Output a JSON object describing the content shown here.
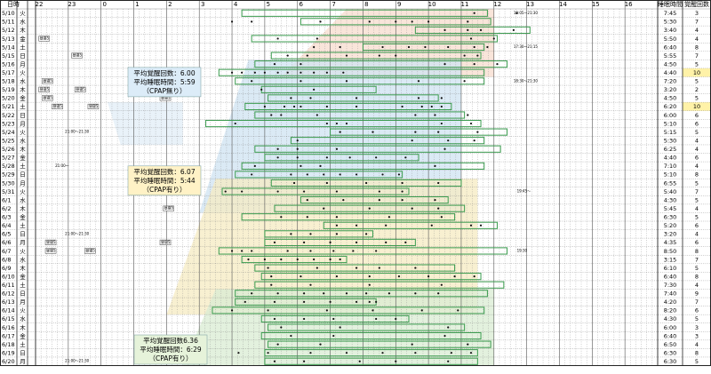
{
  "chart_data": {
    "type": "table",
    "header": {
      "date": "日時",
      "sleep_time": "睡眠時間",
      "wake_count": "覚醒回数",
      "hours": [
        "22",
        "23",
        "0",
        "1",
        "2",
        "3",
        "4",
        "5",
        "6",
        "7",
        "8",
        "9",
        "10",
        "11",
        "12",
        "13",
        "14",
        "15",
        "16"
      ]
    },
    "rows": [
      {
        "date": "5/10",
        "day": "火",
        "sleep": "7:45",
        "wakes": "3"
      },
      {
        "date": "5/11",
        "day": "水",
        "sleep": "5:30",
        "wakes": "7"
      },
      {
        "date": "5/12",
        "day": "木",
        "sleep": "3:40",
        "wakes": "4"
      },
      {
        "date": "5/13",
        "day": "金",
        "sleep": "5:50",
        "wakes": "4"
      },
      {
        "date": "5/14",
        "day": "土",
        "sleep": "6:40",
        "wakes": "8"
      },
      {
        "date": "5/15",
        "day": "日",
        "sleep": "5:55",
        "wakes": "7"
      },
      {
        "date": "5/16",
        "day": "月",
        "sleep": "4:50",
        "wakes": "5"
      },
      {
        "date": "5/17",
        "day": "火",
        "sleep": "4:40",
        "wakes": "10"
      },
      {
        "date": "5/18",
        "day": "水",
        "sleep": "7:20",
        "wakes": "5"
      },
      {
        "date": "5/19",
        "day": "木",
        "sleep": "3:20",
        "wakes": "2"
      },
      {
        "date": "5/20",
        "day": "金",
        "sleep": "4:50",
        "wakes": "5"
      },
      {
        "date": "5/21",
        "day": "土",
        "sleep": "6:20",
        "wakes": "10"
      },
      {
        "date": "5/22",
        "day": "日",
        "sleep": "6:00",
        "wakes": "6"
      },
      {
        "date": "5/23",
        "day": "月",
        "sleep": "5:10",
        "wakes": "6"
      },
      {
        "date": "5/24",
        "day": "火",
        "sleep": "5:15",
        "wakes": "5"
      },
      {
        "date": "5/25",
        "day": "水",
        "sleep": "5:30",
        "wakes": "4"
      },
      {
        "date": "5/26",
        "day": "木",
        "sleep": "6:25",
        "wakes": "4"
      },
      {
        "date": "5/27",
        "day": "金",
        "sleep": "4:40",
        "wakes": "6"
      },
      {
        "date": "5/28",
        "day": "土",
        "sleep": "7:10",
        "wakes": "4"
      },
      {
        "date": "5/29",
        "day": "日",
        "sleep": "5:10",
        "wakes": "8"
      },
      {
        "date": "5/30",
        "day": "月",
        "sleep": "6:55",
        "wakes": "5"
      },
      {
        "date": "5/31",
        "day": "火",
        "sleep": "5:40",
        "wakes": "7"
      },
      {
        "date": "6/1",
        "day": "水",
        "sleep": "4:30",
        "wakes": "5"
      },
      {
        "date": "6/2",
        "day": "木",
        "sleep": "5:45",
        "wakes": "4"
      },
      {
        "date": "6/3",
        "day": "金",
        "sleep": "6:30",
        "wakes": "5"
      },
      {
        "date": "6/4",
        "day": "土",
        "sleep": "5:20",
        "wakes": "6"
      },
      {
        "date": "6/5",
        "day": "日",
        "sleep": "3:20",
        "wakes": "4"
      },
      {
        "date": "6/6",
        "day": "月",
        "sleep": "4:35",
        "wakes": "6"
      },
      {
        "date": "6/7",
        "day": "火",
        "sleep": "8:50",
        "wakes": "8"
      },
      {
        "date": "6/8",
        "day": "水",
        "sleep": "3:15",
        "wakes": "7"
      },
      {
        "date": "6/9",
        "day": "木",
        "sleep": "6:10",
        "wakes": "5"
      },
      {
        "date": "6/10",
        "day": "金",
        "sleep": "6:40",
        "wakes": "8"
      },
      {
        "date": "6/11",
        "day": "土",
        "sleep": "7:30",
        "wakes": "4"
      },
      {
        "date": "6/12",
        "day": "日",
        "sleep": "7:40",
        "wakes": "9"
      },
      {
        "date": "6/13",
        "day": "月",
        "sleep": "4:20",
        "wakes": "7"
      },
      {
        "date": "6/14",
        "day": "火",
        "sleep": "8:20",
        "wakes": "6"
      },
      {
        "date": "6/15",
        "day": "水",
        "sleep": "4:30",
        "wakes": "5"
      },
      {
        "date": "6/16",
        "day": "木",
        "sleep": "6:00",
        "wakes": "3"
      },
      {
        "date": "6/17",
        "day": "金",
        "sleep": "6:40",
        "wakes": "3"
      },
      {
        "date": "6/18",
        "day": "土",
        "sleep": "6:50",
        "wakes": "4"
      },
      {
        "date": "6/19",
        "day": "日",
        "sleep": "6:30",
        "wakes": "8"
      },
      {
        "date": "6/20",
        "day": "月",
        "sleep": "6:30",
        "wakes": "5"
      }
    ],
    "sleep_bars": [
      [
        6.3,
        13.8
      ],
      [
        8.1,
        13.9
      ],
      [
        11.6,
        15.1
      ],
      [
        6.6,
        14.1
      ],
      [
        10.0,
        13.7
      ],
      [
        7.2,
        13.6
      ],
      [
        6.7,
        14.4
      ],
      [
        5.6,
        13.7
      ],
      [
        6.1,
        13.7
      ],
      [
        6.9,
        10.4
      ],
      [
        7.1,
        12.3
      ],
      [
        6.4,
        12.7
      ],
      [
        6.7,
        13.1
      ],
      [
        5.2,
        13.6
      ],
      [
        9.0,
        14.4
      ],
      [
        7.8,
        13.7
      ],
      [
        6.7,
        14.2
      ],
      [
        7.0,
        11.7
      ],
      [
        6.3,
        13.7
      ],
      [
        6.1,
        11.2
      ],
      [
        7.2,
        13.0
      ],
      [
        5.7,
        11.4
      ],
      [
        8.1,
        12.6
      ],
      [
        7.3,
        13.1
      ],
      [
        6.3,
        12.8
      ],
      [
        8.8,
        14.1
      ],
      [
        7.0,
        10.3
      ],
      [
        7.0,
        11.6
      ],
      [
        5.6,
        14.4
      ],
      [
        6.3,
        9.5
      ],
      [
        6.7,
        12.8
      ],
      [
        6.9,
        13.6
      ],
      [
        6.7,
        14.3
      ],
      [
        6.1,
        13.8
      ],
      [
        6.1,
        10.4
      ],
      [
        5.4,
        13.7
      ],
      [
        6.9,
        11.4
      ],
      [
        7.1,
        13.1
      ],
      [
        6.9,
        13.6
      ],
      [
        7.1,
        13.9
      ],
      [
        7.0,
        13.5
      ],
      [
        7.0,
        13.5
      ]
    ],
    "dots": [
      [
        13.4,
        14.7
      ],
      [
        6.0,
        6.6,
        8.7,
        10.2,
        11.0,
        11.5,
        12.0,
        13.2
      ],
      [
        12.5,
        13.2,
        13.6,
        14.6
      ],
      [
        7.4,
        8.6,
        13.3,
        14.0
      ],
      [
        8.5,
        9.3,
        10.6,
        11.4,
        11.9,
        12.6,
        13.4,
        13.8
      ],
      [
        7.7,
        8.3,
        9.5,
        10.5,
        11.0,
        13.1,
        13.5
      ],
      [
        7.3,
        8.1,
        12.5,
        13.4,
        14.1
      ],
      [
        6.0,
        6.3,
        6.7,
        7.0,
        7.4,
        7.7,
        8.1,
        8.5,
        8.9,
        9.4
      ],
      [
        6.6,
        8.1,
        9.5,
        11.7,
        13.1
      ],
      [
        6.9,
        8.5
      ],
      [
        7.8,
        8.4,
        9.8,
        11.7,
        12.4
      ],
      [
        7.0,
        7.6,
        7.9,
        8.1,
        8.9,
        9.8,
        11.2,
        11.8,
        12.1,
        12.4
      ],
      [
        7.2,
        7.5,
        8.6,
        11.6,
        12.2,
        13.2
      ],
      [
        6.1,
        8.9,
        9.2,
        9.5,
        12.4,
        13.3
      ],
      [
        9.3,
        10.3,
        11.6,
        12.3,
        13.5
      ],
      [
        8.0,
        11.5,
        12.6,
        13.4
      ],
      [
        7.4,
        8.0,
        9.2,
        12.5
      ],
      [
        7.4,
        8.0,
        8.9,
        9.6,
        10.4,
        11.3
      ],
      [
        6.7,
        8.1,
        8.7,
        12.2
      ],
      [
        6.6,
        7.8,
        8.3,
        8.8,
        9.3,
        9.8,
        10.6,
        11.1
      ],
      [
        7.9,
        8.9,
        10.1,
        11.2,
        12.3
      ],
      [
        5.8,
        6.3,
        7.4,
        8.2,
        9.2,
        10.5,
        11.2
      ],
      [
        8.3,
        9.4,
        10.5,
        11.2,
        12.2
      ],
      [
        8.8,
        10.2,
        11.5,
        12.3
      ],
      [
        7.5,
        8.3,
        9.2,
        10.8,
        12.4
      ],
      [
        9.2,
        9.8,
        10.7,
        12.1,
        13.3,
        13.6
      ],
      [
        7.8,
        8.4,
        9.2,
        10.1
      ],
      [
        7.3,
        8.2,
        9.0,
        9.8,
        10.7,
        11.3
      ],
      [
        6.0,
        6.3,
        6.6,
        7.7,
        8.4,
        9.1,
        9.7,
        10.4
      ],
      [
        6.5,
        7.0,
        7.5,
        8.0,
        8.5,
        9.0,
        9.3
      ],
      [
        7.1,
        8.6,
        9.8,
        10.5,
        11.6
      ],
      [
        7.2,
        8.1,
        9.2,
        10.2,
        11.1,
        12.0,
        12.8,
        13.4
      ],
      [
        7.2,
        8.4,
        10.2,
        12.4
      ],
      [
        6.6,
        7.4,
        8.2,
        8.8,
        9.5,
        10.1,
        10.8,
        11.6,
        12.3
      ],
      [
        6.4,
        7.3,
        8.2,
        9.0,
        9.8,
        10.2,
        10.4
      ],
      [
        6.0,
        7.1,
        8.9,
        10.3,
        11.8,
        12.9
      ],
      [
        7.3,
        8.2,
        9.1,
        10.4,
        11.0
      ],
      [
        7.5,
        9.3,
        12.6
      ],
      [
        7.8,
        9.1,
        12.5
      ],
      [
        7.4,
        8.7,
        11.5,
        13.2
      ],
      [
        6.2,
        7.1,
        8.4,
        9.5,
        10.6,
        11.6,
        12.7,
        13.3
      ],
      [
        7.3,
        8.2,
        9.9,
        11.0,
        12.6
      ]
    ],
    "day_marks": [
      [],
      [],
      [],
      [
        0.1
      ],
      [],
      [
        1.1
      ],
      [],
      [],
      [
        0.2,
        3.9
      ],
      [
        0.1,
        1.2
      ],
      [
        0.2,
        3.8
      ],
      [
        0.5,
        1.6
      ],
      [],
      [],
      [],
      [],
      [],
      [],
      [],
      [],
      [],
      [],
      [],
      [
        3.9
      ],
      [],
      [],
      [],
      [
        0.3,
        3.8
      ],
      [
        0.3,
        1.5
      ],
      [],
      [],
      [],
      [],
      [],
      [],
      [],
      [],
      [],
      [],
      [],
      [],
      []
    ],
    "day_mark_text": "昼寝5",
    "bedtimes": [
      {
        "row": 0,
        "text": "18:05～21:30"
      },
      {
        "row": 4,
        "text": "17:30～21:15"
      },
      {
        "row": 8,
        "text": "18:30～21:30"
      },
      {
        "row": 14,
        "text": "21:00～21:30"
      },
      {
        "row": 18,
        "text": "21:00～"
      },
      {
        "row": 21,
        "text": "19:45～"
      },
      {
        "row": 26,
        "text": "21:00～21:30"
      },
      {
        "row": 28,
        "text": "19:30"
      },
      {
        "row": 41,
        "text": "21:00～21:30"
      }
    ],
    "summaries": [
      {
        "line1": "平均覚醒回数：6.00",
        "line2": "平均睡眠時間：5:59",
        "line3": "（CPAP無り）"
      },
      {
        "line1": "平均覚醒回数：6.07",
        "line2": "平均睡眠時間：5:44",
        "line3": "（CPAP有り）"
      },
      {
        "line1": "平均覚醒回数6.36",
        "line2": "平均睡眠時間：6:29",
        "line3": "（CPAP有り）"
      }
    ],
    "highlight_rows": [
      7,
      11
    ],
    "colors": {
      "period1": "#f7dccd",
      "period2": "#cfe3f2",
      "period3": "#f6ebc2",
      "period4": "#d9ecd3",
      "bar_border": "#3a9b4e",
      "highlight": "#fff2a8",
      "box1": "#dcecf8",
      "box2": "#fff2c6",
      "box3": "#e6f3da"
    }
  }
}
